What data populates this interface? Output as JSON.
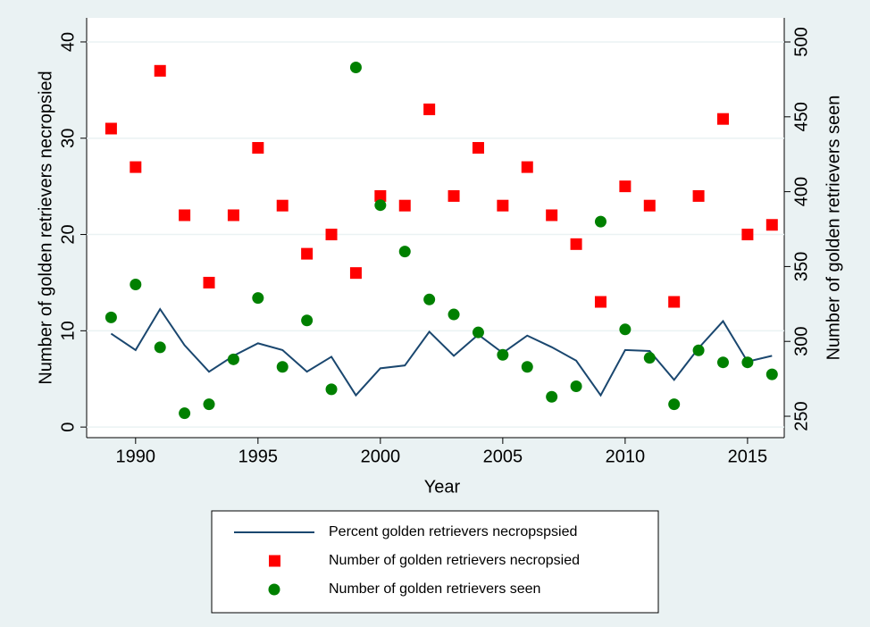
{
  "chart_data": {
    "type": "combo",
    "x_label": "Year",
    "y_label": "Number of golden retrievers necropsied",
    "y2_label": "Number of golden retrievers seen",
    "x": [
      1989,
      1990,
      1991,
      1992,
      1993,
      1994,
      1995,
      1996,
      1997,
      1998,
      1999,
      2000,
      2001,
      2002,
      2003,
      2004,
      2005,
      2006,
      2007,
      2008,
      2009,
      2010,
      2011,
      2012,
      2013,
      2014,
      2015,
      2016
    ],
    "series": [
      {
        "name": "Percent golden retrievers necropspsied",
        "mark": "line",
        "color": "#1a476f",
        "values": [
          9.7,
          8.0,
          12.25,
          8.5,
          5.75,
          7.4,
          8.7,
          8.0,
          5.75,
          7.3,
          3.3,
          6.1,
          6.4,
          9.9,
          7.4,
          9.6,
          7.7,
          9.5,
          8.3,
          6.9,
          3.3,
          8.0,
          7.9,
          4.9,
          8.2,
          11.0,
          6.8,
          7.4
        ]
      },
      {
        "name": "Number of golden retrievers necropsied",
        "mark": "square",
        "color": "#ff0000",
        "values": [
          31,
          27,
          37,
          22,
          15,
          22,
          29,
          23,
          18,
          20,
          16,
          24,
          23,
          33,
          24,
          29,
          23,
          27,
          22,
          19,
          13,
          25,
          23,
          13,
          24,
          32,
          20,
          21
        ]
      },
      {
        "name": "Number of golden retrievers seen",
        "mark": "circle",
        "color": "#008000",
        "axis": "y2",
        "values": [
          316,
          338,
          296,
          252,
          258,
          288,
          329,
          283,
          314,
          268,
          483,
          391,
          360,
          328,
          318,
          306,
          291,
          283,
          263,
          270,
          380,
          308,
          289,
          258,
          294,
          286,
          286,
          278
        ]
      }
    ],
    "xlim": [
      1988,
      2016.5
    ],
    "xticks": [
      1990,
      1995,
      2000,
      2005,
      2010,
      2015
    ],
    "ylim": [
      -1.1,
      42.5
    ],
    "yticks": [
      0,
      10,
      20,
      30,
      40
    ],
    "y2lim": [
      235.7,
      516.1
    ],
    "y2ticks": [
      250,
      300,
      350,
      400,
      450,
      500
    ],
    "grid": true
  }
}
